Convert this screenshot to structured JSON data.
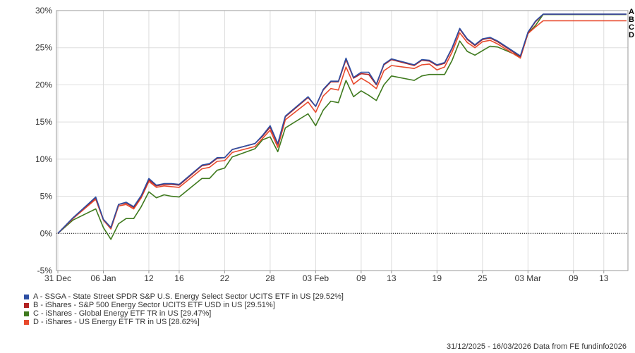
{
  "chart_data": {
    "type": "line",
    "grid": true,
    "ylim": [
      -5,
      30
    ],
    "y_ticks": [
      -5,
      0,
      5,
      10,
      15,
      20,
      25,
      30
    ],
    "y_tick_labels": [
      "-5%",
      "0%",
      "5%",
      "10%",
      "15%",
      "20%",
      "25%",
      "30%"
    ],
    "x_tick_labels": [
      "31 Dec",
      "06 Jan",
      "12",
      "16",
      "22",
      "28",
      "03 Feb",
      "09",
      "13",
      "19",
      "25",
      "03 Mar",
      "09",
      "13"
    ],
    "x_tick_dates": [
      "2025-12-31",
      "2026-01-06",
      "2026-01-12",
      "2026-01-16",
      "2026-01-22",
      "2026-01-28",
      "2026-02-03",
      "2026-02-09",
      "2026-02-13",
      "2026-02-19",
      "2026-02-25",
      "2026-03-03",
      "2026-03-09",
      "2026-03-13"
    ],
    "x": [
      "2025-12-31",
      "2026-01-02",
      "2026-01-05",
      "2026-01-06",
      "2026-01-07",
      "2026-01-08",
      "2026-01-09",
      "2026-01-10",
      "2026-01-11",
      "2026-01-12",
      "2026-01-13",
      "2026-01-14",
      "2026-01-15",
      "2026-01-16",
      "2026-01-19",
      "2026-01-20",
      "2026-01-21",
      "2026-01-22",
      "2026-01-23",
      "2026-01-26",
      "2026-01-27",
      "2026-01-28",
      "2026-01-29",
      "2026-01-30",
      "2026-02-02",
      "2026-02-03",
      "2026-02-04",
      "2026-02-05",
      "2026-02-06",
      "2026-02-07",
      "2026-02-08",
      "2026-02-09",
      "2026-02-10",
      "2026-02-11",
      "2026-02-12",
      "2026-02-13",
      "2026-02-16",
      "2026-02-17",
      "2026-02-18",
      "2026-02-19",
      "2026-02-20",
      "2026-02-21",
      "2026-02-22",
      "2026-02-23",
      "2026-02-24",
      "2026-02-25",
      "2026-02-26",
      "2026-02-27",
      "2026-03-02",
      "2026-03-03",
      "2026-03-04",
      "2026-03-05",
      "2026-03-06",
      "2026-03-07",
      "2026-03-08",
      "2026-03-09",
      "2026-03-10",
      "2026-03-11",
      "2026-03-12",
      "2026-03-13",
      "2026-03-16"
    ],
    "series": [
      {
        "name": "A",
        "color": "#2d4fa3",
        "values": [
          0.0,
          2.1,
          4.9,
          1.9,
          0.8,
          3.9,
          4.2,
          3.6,
          5.1,
          7.4,
          6.5,
          6.7,
          6.7,
          6.6,
          9.2,
          9.4,
          10.2,
          10.2,
          11.3,
          12.1,
          13.2,
          14.5,
          12.1,
          15.8,
          18.4,
          17.1,
          19.4,
          20.5,
          20.5,
          23.6,
          21.0,
          21.7,
          21.7,
          20.1,
          22.8,
          23.5,
          22.7,
          23.4,
          23.3,
          22.7,
          23.0,
          25.0,
          27.6,
          26.2,
          25.4,
          26.2,
          26.4,
          25.9,
          23.9,
          27.1,
          28.6,
          29.52,
          29.52,
          29.52,
          29.52,
          29.52,
          29.52,
          29.52,
          29.52,
          29.52,
          29.52
        ]
      },
      {
        "name": "B",
        "color": "#b22222",
        "values": [
          0.0,
          2.1,
          4.8,
          1.9,
          0.8,
          3.9,
          4.1,
          3.5,
          5.0,
          7.2,
          6.4,
          6.6,
          6.6,
          6.5,
          9.1,
          9.3,
          10.1,
          10.2,
          11.3,
          12.1,
          13.1,
          14.3,
          12.0,
          15.7,
          18.3,
          17.1,
          19.3,
          20.4,
          20.4,
          23.4,
          20.9,
          21.5,
          21.4,
          20.0,
          22.7,
          23.4,
          22.6,
          23.3,
          23.2,
          22.6,
          22.9,
          24.9,
          27.5,
          26.1,
          25.3,
          26.1,
          26.3,
          25.8,
          23.8,
          27.0,
          28.5,
          29.51,
          29.51,
          29.51,
          29.51,
          29.51,
          29.51,
          29.51,
          29.51,
          29.51,
          29.51
        ]
      },
      {
        "name": "C",
        "color": "#3f7a1e",
        "values": [
          0.0,
          1.8,
          3.3,
          0.8,
          -0.8,
          1.3,
          2.0,
          2.0,
          3.6,
          5.6,
          4.8,
          5.2,
          5.0,
          4.9,
          7.4,
          7.4,
          8.5,
          8.8,
          10.3,
          11.4,
          12.6,
          13.0,
          11.0,
          14.2,
          16.1,
          14.5,
          16.6,
          17.8,
          17.6,
          20.6,
          18.4,
          19.2,
          18.6,
          17.9,
          20.0,
          21.2,
          20.6,
          21.2,
          21.4,
          21.4,
          21.4,
          23.3,
          25.9,
          24.5,
          24.0,
          24.6,
          25.2,
          25.1,
          23.8,
          26.9,
          28.0,
          29.47,
          29.47,
          29.47,
          29.47,
          29.47,
          29.47,
          29.47,
          29.47,
          29.47,
          29.47
        ]
      },
      {
        "name": "D",
        "color": "#e8492c",
        "values": [
          0.0,
          2.0,
          4.6,
          1.8,
          0.6,
          3.7,
          3.9,
          3.3,
          4.8,
          7.0,
          6.2,
          6.4,
          6.3,
          6.2,
          8.7,
          8.9,
          9.7,
          9.8,
          10.9,
          11.7,
          12.8,
          13.9,
          11.6,
          15.3,
          17.7,
          16.3,
          18.5,
          19.5,
          19.3,
          22.4,
          20.1,
          20.9,
          20.3,
          19.5,
          21.9,
          22.6,
          22.2,
          22.7,
          22.8,
          22.0,
          22.4,
          24.4,
          27.0,
          25.7,
          25.0,
          25.8,
          26.0,
          25.5,
          23.6,
          26.9,
          27.8,
          28.62,
          28.62,
          28.62,
          28.62,
          28.62,
          28.62,
          28.62,
          28.62,
          28.62,
          28.62
        ]
      }
    ]
  },
  "legend": [
    {
      "text": "A - SSGA - State Street SPDR S&P U.S. Energy Select Sector UCITS ETF in US [29.52%]",
      "color": "#2d4fa3"
    },
    {
      "text": "B - iShares - S&P 500 Energy Sector UCITS ETF USD in US [29.51%]",
      "color": "#b22222"
    },
    {
      "text": "C - iShares - Global Energy ETF TR in US [29.47%]",
      "color": "#3f7a1e"
    },
    {
      "text": "D - iShares - US Energy ETF TR in US [28.62%]",
      "color": "#e8492c"
    }
  ],
  "footer": "31/12/2025 - 16/03/2026 Data from FE fundinfo2026"
}
